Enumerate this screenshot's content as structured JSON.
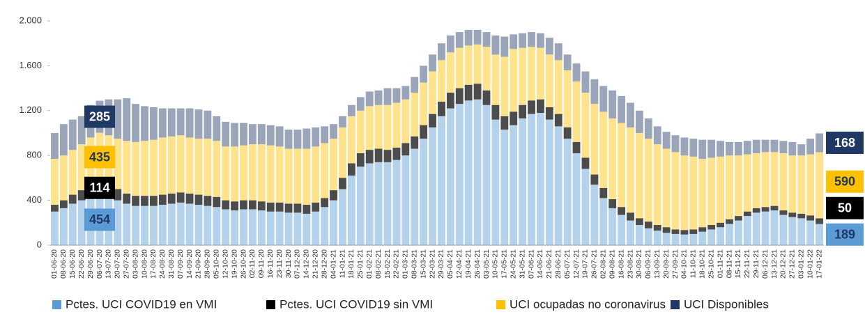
{
  "chart_data": {
    "type": "stacked-bar",
    "categories": [
      "01-06-20",
      "08-06-20",
      "15-06-20",
      "22-06-20",
      "29-06-20",
      "06-07-20",
      "13-07-20",
      "20-07-20",
      "27-07-20",
      "03-08-20",
      "10-08-20",
      "17-08-20",
      "24-08-20",
      "31-08-20",
      "07-09-20",
      "14-09-20",
      "21-09-20",
      "28-09-20",
      "05-10-20",
      "12-10-20",
      "19-10-20",
      "26-10-20",
      "02-11-20",
      "09-11-20",
      "16-11-20",
      "23-11-20",
      "30-11-20",
      "07-12-20",
      "14-12-20",
      "21-12-20",
      "28-12-20",
      "04-01-21",
      "11-01-21",
      "18-01-21",
      "25-01-21",
      "01-02-21",
      "08-02-21",
      "15-02-21",
      "22-02-21",
      "01-03-21",
      "08-03-21",
      "15-03-21",
      "22-03-21",
      "29-03-21",
      "05-04-21",
      "12-04-21",
      "19-04-21",
      "26-04-21",
      "03-05-21",
      "10-05-21",
      "17-05-21",
      "24-05-21",
      "31-05-21",
      "07-06-21",
      "14-06-21",
      "21-06-21",
      "28-06-21",
      "05-07-21",
      "12-07-21",
      "19-07-21",
      "26-07-21",
      "02-08-21",
      "09-08-21",
      "16-08-21",
      "23-08-21",
      "30-08-21",
      "06-09-21",
      "13-09-21",
      "20-09-21",
      "27-09-21",
      "04-10-21",
      "11-10-21",
      "18-10-21",
      "25-10-21",
      "01-11-21",
      "08-11-21",
      "15-11-21",
      "22-11-21",
      "29-11-21",
      "06-12-21",
      "13-12-21",
      "20-12-21",
      "27-12-21",
      "03-01-22",
      "10-01-22",
      "17-01-22"
    ],
    "series": [
      {
        "name": "Pctes. UCI COVID19 en VMI",
        "color": "#5b9bd5",
        "values": [
          300,
          330,
          370,
          400,
          430,
          454,
          430,
          400,
          370,
          350,
          350,
          350,
          360,
          370,
          380,
          370,
          360,
          350,
          340,
          320,
          310,
          320,
          320,
          310,
          300,
          300,
          290,
          290,
          280,
          300,
          340,
          400,
          500,
          620,
          700,
          730,
          740,
          740,
          760,
          800,
          860,
          950,
          1050,
          1150,
          1220,
          1260,
          1290,
          1300,
          1250,
          1120,
          1030,
          1070,
          1130,
          1170,
          1180,
          1120,
          1060,
          950,
          820,
          680,
          540,
          420,
          330,
          270,
          220,
          180,
          150,
          130,
          110,
          100,
          95,
          100,
          120,
          140,
          160,
          190,
          220,
          260,
          290,
          300,
          310,
          270,
          250,
          240,
          220,
          189
        ]
      },
      {
        "name": "Pctes. UCI COVID19 sin VMI",
        "color": "#000000",
        "values": [
          60,
          70,
          80,
          90,
          100,
          114,
          110,
          100,
          90,
          90,
          90,
          90,
          90,
          90,
          90,
          90,
          90,
          90,
          90,
          80,
          80,
          80,
          80,
          80,
          80,
          80,
          80,
          80,
          80,
          80,
          80,
          90,
          100,
          110,
          120,
          120,
          120,
          110,
          110,
          110,
          110,
          120,
          120,
          130,
          140,
          140,
          140,
          140,
          130,
          130,
          120,
          120,
          120,
          120,
          120,
          110,
          110,
          100,
          100,
          100,
          90,
          90,
          80,
          70,
          70,
          60,
          60,
          50,
          50,
          40,
          40,
          40,
          40,
          40,
          40,
          40,
          40,
          40,
          40,
          40,
          40,
          40,
          40,
          40,
          45,
          50
        ]
      },
      {
        "name": "UCI ocupadas no coronavirus",
        "color": "#ffc000",
        "values": [
          410,
          400,
          400,
          410,
          430,
          435,
          440,
          450,
          470,
          480,
          490,
          500,
          510,
          510,
          510,
          500,
          500,
          510,
          500,
          480,
          490,
          490,
          500,
          510,
          510,
          500,
          490,
          490,
          500,
          500,
          490,
          460,
          450,
          420,
          380,
          390,
          390,
          400,
          400,
          390,
          390,
          380,
          380,
          370,
          360,
          360,
          350,
          350,
          390,
          450,
          530,
          560,
          510,
          480,
          460,
          470,
          480,
          510,
          540,
          580,
          630,
          680,
          720,
          750,
          760,
          760,
          740,
          720,
          700,
          690,
          665,
          650,
          610,
          600,
          590,
          570,
          540,
          510,
          490,
          490,
          480,
          510,
          510,
          520,
          545,
          590
        ]
      },
      {
        "name": "UCI Disponibles",
        "color": "#1f3864",
        "values": [
          230,
          280,
          270,
          250,
          290,
          285,
          320,
          350,
          380,
          340,
          310,
          290,
          260,
          250,
          240,
          260,
          260,
          250,
          220,
          220,
          210,
          200,
          180,
          180,
          180,
          180,
          170,
          170,
          180,
          170,
          150,
          130,
          100,
          100,
          120,
          130,
          130,
          150,
          130,
          120,
          140,
          150,
          150,
          150,
          150,
          140,
          140,
          130,
          130,
          170,
          180,
          130,
          130,
          130,
          130,
          150,
          150,
          140,
          160,
          190,
          220,
          230,
          250,
          240,
          220,
          200,
          180,
          160,
          150,
          150,
          160,
          160,
          170,
          160,
          140,
          120,
          120,
          120,
          120,
          110,
          110,
          110,
          120,
          100,
          140,
          168
        ]
      }
    ],
    "ylim": [
      0,
      2000
    ],
    "yticks": [
      0,
      400,
      800,
      {
        "value": 1200,
        "label": "1.200"
      },
      {
        "value": 1600,
        "label": "1.600"
      },
      {
        "value": 2000,
        "label": "2.000"
      }
    ],
    "grid": false
  }
}
